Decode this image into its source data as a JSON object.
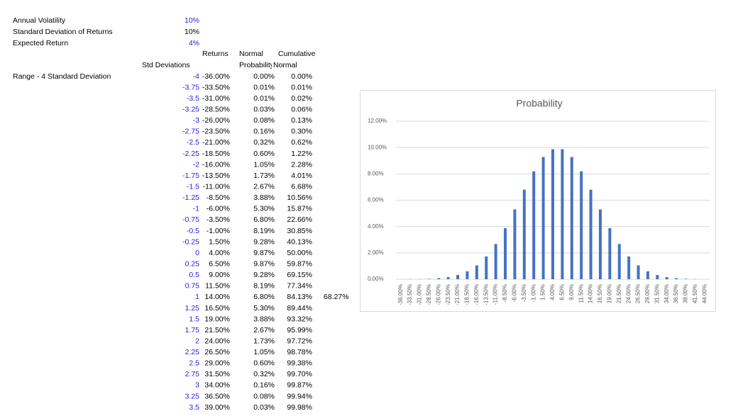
{
  "params": [
    {
      "label": "Annual Volatility",
      "value": "10%"
    },
    {
      "label": "Standard Deviation of Returns",
      "value": "10%"
    },
    {
      "label": "Expected Return",
      "value": "4%"
    }
  ],
  "headers": {
    "returns": "Returns",
    "normal_1": "Normal",
    "cumulative": "Cumulative",
    "std_deviations": "Std Deviations",
    "probability": "Probability",
    "normal_2": "Normal"
  },
  "table": {
    "rows": [
      {
        "label": "Range - 4 Standard Deviation",
        "std": "-4",
        "returns": "-36.00%",
        "prob": "0.00%",
        "cum": "0.00%"
      },
      {
        "std": "-3.75",
        "returns": "-33.50%",
        "prob": "0.01%",
        "cum": "0.01%"
      },
      {
        "std": "-3.5",
        "returns": "-31.00%",
        "prob": "0.01%",
        "cum": "0.02%"
      },
      {
        "std": "-3.25",
        "returns": "-28.50%",
        "prob": "0.03%",
        "cum": "0.06%"
      },
      {
        "std": "-3",
        "returns": "-26.00%",
        "prob": "0.08%",
        "cum": "0.13%"
      },
      {
        "std": "-2.75",
        "returns": "-23.50%",
        "prob": "0.16%",
        "cum": "0.30%"
      },
      {
        "std": "-2.5",
        "returns": "-21.00%",
        "prob": "0.32%",
        "cum": "0.62%"
      },
      {
        "std": "-2.25",
        "returns": "-18.50%",
        "prob": "0.60%",
        "cum": "1.22%"
      },
      {
        "std": "-2",
        "returns": "-16.00%",
        "prob": "1.05%",
        "cum": "2.28%"
      },
      {
        "std": "-1.75",
        "returns": "-13.50%",
        "prob": "1.73%",
        "cum": "4.01%"
      },
      {
        "std": "-1.5",
        "returns": "-11.00%",
        "prob": "2.67%",
        "cum": "6.68%"
      },
      {
        "std": "-1.25",
        "returns": "-8.50%",
        "prob": "3.88%",
        "cum": "10.56%"
      },
      {
        "std": "-1",
        "returns": "-6.00%",
        "prob": "5.30%",
        "cum": "15.87%"
      },
      {
        "std": "-0.75",
        "returns": "-3.50%",
        "prob": "6.80%",
        "cum": "22.66%"
      },
      {
        "std": "-0.5",
        "returns": "-1.00%",
        "prob": "8.19%",
        "cum": "30.85%"
      },
      {
        "std": "-0.25",
        "returns": "1.50%",
        "prob": "9.28%",
        "cum": "40.13%"
      },
      {
        "std": "0",
        "returns": "4.00%",
        "prob": "9.87%",
        "cum": "50.00%"
      },
      {
        "std": "0.25",
        "returns": "6.50%",
        "prob": "9.87%",
        "cum": "59.87%"
      },
      {
        "std": "0.5",
        "returns": "9.00%",
        "prob": "9.28%",
        "cum": "69.15%"
      },
      {
        "std": "0.75",
        "returns": "11.50%",
        "prob": "8.19%",
        "cum": "77.34%"
      },
      {
        "std": "1",
        "returns": "14.00%",
        "prob": "6.80%",
        "cum": "84.13%",
        "note": "68.27%"
      },
      {
        "std": "1.25",
        "returns": "16.50%",
        "prob": "5.30%",
        "cum": "89.44%"
      },
      {
        "std": "1.5",
        "returns": "19.00%",
        "prob": "3.88%",
        "cum": "93.32%"
      },
      {
        "std": "1.75",
        "returns": "21.50%",
        "prob": "2.67%",
        "cum": "95.99%"
      },
      {
        "std": "2",
        "returns": "24.00%",
        "prob": "1.73%",
        "cum": "97.72%"
      },
      {
        "std": "2.25",
        "returns": "26.50%",
        "prob": "1.05%",
        "cum": "98.78%"
      },
      {
        "std": "2.5",
        "returns": "29.00%",
        "prob": "0.60%",
        "cum": "99.38%"
      },
      {
        "std": "2.75",
        "returns": "31.50%",
        "prob": "0.32%",
        "cum": "99.70%"
      },
      {
        "std": "3",
        "returns": "34.00%",
        "prob": "0.16%",
        "cum": "99.87%"
      },
      {
        "std": "3.25",
        "returns": "36.50%",
        "prob": "0.08%",
        "cum": "99.94%"
      },
      {
        "std": "3.5",
        "returns": "39.00%",
        "prob": "0.03%",
        "cum": "99.98%"
      }
    ]
  },
  "chart_data": {
    "type": "bar",
    "title": "Probability",
    "color": "#4472c4",
    "grid": true,
    "categories": [
      "-36.00%",
      "-33.50%",
      "-31.00%",
      "-28.50%",
      "-26.00%",
      "-23.50%",
      "-21.00%",
      "-18.50%",
      "-16.00%",
      "-13.50%",
      "-11.00%",
      "-8.50%",
      "-6.00%",
      "-3.50%",
      "-1.00%",
      "1.50%",
      "4.00%",
      "6.50%",
      "9.00%",
      "11.50%",
      "14.00%",
      "16.50%",
      "19.00%",
      "21.50%",
      "24.00%",
      "26.50%",
      "29.00%",
      "31.50%",
      "34.00%",
      "36.50%",
      "39.00%",
      "41.50%",
      "44.00%"
    ],
    "values": [
      0.0,
      0.01,
      0.01,
      0.03,
      0.08,
      0.16,
      0.32,
      0.6,
      1.05,
      1.73,
      2.67,
      3.88,
      5.3,
      6.8,
      8.19,
      9.28,
      9.87,
      9.87,
      9.28,
      8.19,
      6.8,
      5.3,
      3.88,
      2.67,
      1.73,
      1.05,
      0.6,
      0.32,
      0.16,
      0.08,
      0.03,
      0.01,
      0.0
    ],
    "ylim": [
      0,
      12
    ],
    "yticks": [
      {
        "value": 0,
        "label": "0.00%"
      },
      {
        "value": 2,
        "label": "2.00%"
      },
      {
        "value": 4,
        "label": "4.00%"
      },
      {
        "value": 6,
        "label": "6.00%"
      },
      {
        "value": 8,
        "label": "8.00%"
      },
      {
        "value": 10,
        "label": "10.00%"
      },
      {
        "value": 12,
        "label": "12.00%"
      }
    ]
  }
}
